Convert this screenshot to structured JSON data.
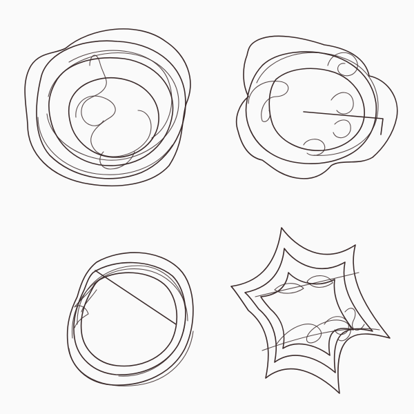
{
  "colors": {
    "background": "#fafafa",
    "rose_orange_outer": "#f5cf8e",
    "rose_orange_inner": "#f3a06e",
    "rose_gold": "#eec77c",
    "rose_gold_inner": "#e4b560",
    "rose_coral_outer": "#f08a8a",
    "rose_coral_inner": "#f76e54",
    "star_plum": "#9a3b6c",
    "star_plum_light": "#c05a8c",
    "star_accent_gold": "#e6c27a",
    "star_accent_lavender": "#b7a2d6",
    "stroke": "#3a2a2a"
  },
  "shapes": [
    {
      "name": "orange-rose-shape",
      "kind": "rose-cluster",
      "palette": "orange"
    },
    {
      "name": "gold-rose-shape",
      "kind": "loop-cluster",
      "palette": "gold"
    },
    {
      "name": "coral-rose-shape",
      "kind": "spiral-cluster",
      "palette": "coral"
    },
    {
      "name": "plum-star-shape",
      "kind": "star",
      "palette": "plum"
    }
  ]
}
